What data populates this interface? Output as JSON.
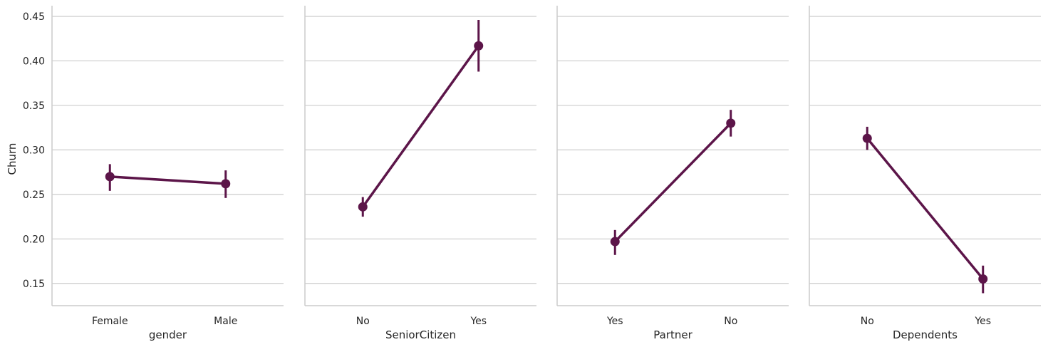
{
  "chart_data": {
    "type": "point",
    "layout": "facet-row",
    "ylabel": "Churn",
    "ylim": [
      0.125,
      0.462
    ],
    "yticks": [
      "0.15",
      "0.20",
      "0.25",
      "0.30",
      "0.35",
      "0.40",
      "0.45"
    ],
    "color": "#5c1549",
    "panels": [
      {
        "xlabel": "gender",
        "categories": [
          "Female",
          "Male"
        ],
        "values": [
          0.27,
          0.262
        ],
        "ci_low": [
          0.254,
          0.246
        ],
        "ci_high": [
          0.284,
          0.277
        ]
      },
      {
        "xlabel": "SeniorCitizen",
        "categories": [
          "No",
          "Yes"
        ],
        "values": [
          0.236,
          0.417
        ],
        "ci_low": [
          0.225,
          0.388
        ],
        "ci_high": [
          0.247,
          0.446
        ]
      },
      {
        "xlabel": "Partner",
        "categories": [
          "Yes",
          "No"
        ],
        "values": [
          0.197,
          0.33
        ],
        "ci_low": [
          0.182,
          0.315
        ],
        "ci_high": [
          0.21,
          0.345
        ]
      },
      {
        "xlabel": "Dependents",
        "categories": [
          "No",
          "Yes"
        ],
        "values": [
          0.313,
          0.155
        ],
        "ci_low": [
          0.3,
          0.139
        ],
        "ci_high": [
          0.326,
          0.17
        ]
      }
    ]
  }
}
